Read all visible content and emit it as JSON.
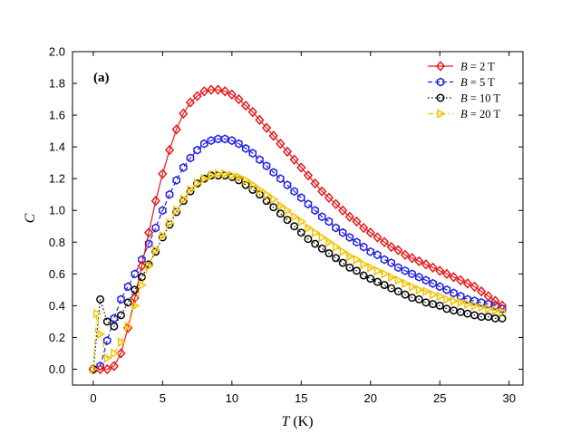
{
  "chart_data": {
    "type": "line",
    "panel_label": "(a)",
    "xlabel": {
      "italic": "T",
      "unit": " (K)"
    },
    "ylabel": "C",
    "xlim": [
      -1.5,
      31
    ],
    "ylim": [
      -0.1,
      2.0
    ],
    "xticks": [
      0,
      5,
      10,
      15,
      20,
      25,
      30
    ],
    "xtick_labels": [
      "0",
      "5",
      "10",
      "15",
      "20",
      "25",
      "30"
    ],
    "yticks": [
      0.0,
      0.2,
      0.4,
      0.6,
      0.8,
      1.0,
      1.2,
      1.4,
      1.6,
      1.8,
      2.0
    ],
    "ytick_labels": [
      "0.0",
      "0.2",
      "0.4",
      "0.6",
      "0.8",
      "1.0",
      "1.2",
      "1.4",
      "1.6",
      "1.8",
      "2.0"
    ],
    "grid": false,
    "legend_position": "top-right",
    "series": [
      {
        "name": "B = 2 T",
        "legend_italic": "B",
        "legend_rest": " = 2 T",
        "color": "#e41a1c",
        "marker": "diamond",
        "dash": "solid",
        "x": [
          0,
          0.5,
          1,
          1.5,
          2,
          2.5,
          3,
          3.5,
          4,
          4.5,
          5,
          5.5,
          6,
          6.5,
          7,
          7.5,
          8,
          8.5,
          9,
          9.5,
          10,
          10.5,
          11,
          11.5,
          12,
          12.5,
          13,
          13.5,
          14,
          14.5,
          15,
          15.5,
          16,
          16.5,
          17,
          17.5,
          18,
          18.5,
          19,
          19.5,
          20,
          20.5,
          21,
          21.5,
          22,
          22.5,
          23,
          23.5,
          24,
          24.5,
          25,
          25.5,
          26,
          26.5,
          27,
          27.5,
          28,
          28.5,
          29,
          29.5
        ],
        "y": [
          0.0,
          0.0,
          0.0,
          0.02,
          0.1,
          0.26,
          0.45,
          0.65,
          0.86,
          1.06,
          1.23,
          1.38,
          1.51,
          1.61,
          1.68,
          1.72,
          1.75,
          1.76,
          1.76,
          1.75,
          1.73,
          1.7,
          1.66,
          1.62,
          1.57,
          1.52,
          1.47,
          1.42,
          1.37,
          1.32,
          1.27,
          1.22,
          1.17,
          1.12,
          1.08,
          1.04,
          1.0,
          0.96,
          0.93,
          0.89,
          0.86,
          0.83,
          0.8,
          0.77,
          0.75,
          0.72,
          0.7,
          0.68,
          0.66,
          0.64,
          0.62,
          0.6,
          0.58,
          0.56,
          0.54,
          0.52,
          0.49,
          0.46,
          0.43,
          0.4
        ]
      },
      {
        "name": "B = 5 T",
        "legend_italic": "B",
        "legend_rest": " = 5 T",
        "color": "#1f1fe0",
        "marker": "hexagon",
        "dash": "dashed",
        "x": [
          0,
          0.5,
          1,
          1.5,
          2,
          2.5,
          3,
          3.5,
          4,
          4.5,
          5,
          5.5,
          6,
          6.5,
          7,
          7.5,
          8,
          8.5,
          9,
          9.5,
          10,
          10.5,
          11,
          11.5,
          12,
          12.5,
          13,
          13.5,
          14,
          14.5,
          15,
          15.5,
          16,
          16.5,
          17,
          17.5,
          18,
          18.5,
          19,
          19.5,
          20,
          20.5,
          21,
          21.5,
          22,
          22.5,
          23,
          23.5,
          24,
          24.5,
          25,
          25.5,
          26,
          26.5,
          27,
          27.5,
          28,
          28.5,
          29,
          29.5
        ],
        "y": [
          0.0,
          0.02,
          0.18,
          0.32,
          0.44,
          0.52,
          0.6,
          0.69,
          0.79,
          0.89,
          1.0,
          1.1,
          1.19,
          1.27,
          1.33,
          1.38,
          1.42,
          1.44,
          1.45,
          1.45,
          1.44,
          1.42,
          1.39,
          1.36,
          1.32,
          1.28,
          1.24,
          1.2,
          1.16,
          1.12,
          1.08,
          1.04,
          1.0,
          0.96,
          0.93,
          0.89,
          0.86,
          0.83,
          0.8,
          0.77,
          0.74,
          0.72,
          0.69,
          0.67,
          0.64,
          0.62,
          0.6,
          0.58,
          0.56,
          0.54,
          0.52,
          0.5,
          0.48,
          0.46,
          0.44,
          0.43,
          0.42,
          0.41,
          0.4,
          0.38
        ]
      },
      {
        "name": "B = 10 T",
        "legend_italic": "B",
        "legend_rest": " = 10 T",
        "color": "#000000",
        "marker": "circle",
        "dash": "dotted",
        "x": [
          0,
          0.5,
          1,
          1.5,
          2,
          2.5,
          3,
          3.5,
          4,
          4.5,
          5,
          5.5,
          6,
          6.5,
          7,
          7.5,
          8,
          8.5,
          9,
          9.5,
          10,
          10.5,
          11,
          11.5,
          12,
          12.5,
          13,
          13.5,
          14,
          14.5,
          15,
          15.5,
          16,
          16.5,
          17,
          17.5,
          18,
          18.5,
          19,
          19.5,
          20,
          20.5,
          21,
          21.5,
          22,
          22.5,
          23,
          23.5,
          24,
          24.5,
          25,
          25.5,
          26,
          26.5,
          27,
          27.5,
          28,
          28.5,
          29,
          29.5
        ],
        "y": [
          0.0,
          0.44,
          0.3,
          0.27,
          0.34,
          0.42,
          0.5,
          0.58,
          0.66,
          0.74,
          0.83,
          0.91,
          0.99,
          1.06,
          1.12,
          1.17,
          1.2,
          1.22,
          1.22,
          1.22,
          1.21,
          1.19,
          1.16,
          1.13,
          1.1,
          1.06,
          1.02,
          0.98,
          0.94,
          0.9,
          0.86,
          0.82,
          0.79,
          0.76,
          0.73,
          0.7,
          0.67,
          0.64,
          0.62,
          0.59,
          0.57,
          0.55,
          0.53,
          0.51,
          0.49,
          0.47,
          0.45,
          0.44,
          0.42,
          0.41,
          0.4,
          0.38,
          0.37,
          0.36,
          0.35,
          0.34,
          0.33,
          0.33,
          0.32,
          0.32
        ]
      },
      {
        "name": "B = 20 T",
        "legend_italic": "B",
        "legend_rest": " = 20 T",
        "color": "#f2c200",
        "marker": "triangle-right",
        "dash": "dashdot",
        "x": [
          0,
          0.25,
          0.5,
          1,
          1.5,
          2,
          2.5,
          3,
          3.5,
          4,
          4.5,
          5,
          5.5,
          6,
          6.5,
          7,
          7.5,
          8,
          8.5,
          9,
          9.5,
          10,
          10.5,
          11,
          11.5,
          12,
          12.5,
          13,
          13.5,
          14,
          14.5,
          15,
          15.5,
          16,
          16.5,
          17,
          17.5,
          18,
          18.5,
          19,
          19.5,
          20,
          20.5,
          21,
          21.5,
          22,
          22.5,
          23,
          23.5,
          24,
          24.5,
          25,
          25.5,
          26,
          26.5,
          27,
          27.5,
          28,
          28.5,
          29,
          29.5
        ],
        "y": [
          0.0,
          0.35,
          0.22,
          0.07,
          0.1,
          0.17,
          0.27,
          0.4,
          0.53,
          0.65,
          0.75,
          0.84,
          0.92,
          1.0,
          1.07,
          1.13,
          1.17,
          1.2,
          1.22,
          1.23,
          1.23,
          1.22,
          1.21,
          1.19,
          1.16,
          1.13,
          1.1,
          1.07,
          1.03,
          1.0,
          0.96,
          0.93,
          0.89,
          0.86,
          0.83,
          0.8,
          0.77,
          0.74,
          0.71,
          0.69,
          0.66,
          0.64,
          0.62,
          0.6,
          0.58,
          0.56,
          0.54,
          0.52,
          0.5,
          0.49,
          0.47,
          0.46,
          0.44,
          0.43,
          0.42,
          0.41,
          0.4,
          0.39,
          0.38,
          0.37,
          0.36
        ]
      }
    ]
  }
}
